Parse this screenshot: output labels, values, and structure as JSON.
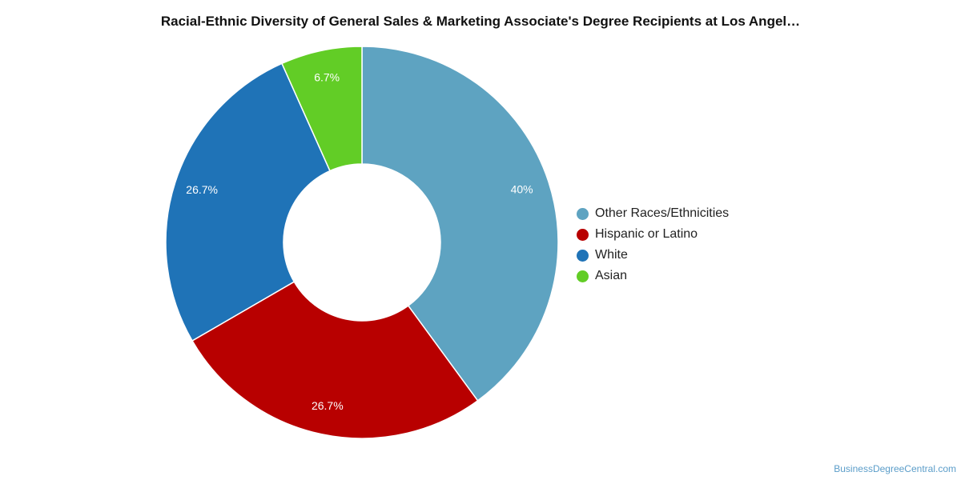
{
  "chart_data": {
    "type": "pie",
    "donut": true,
    "title": "Racial-Ethnic Diversity of General Sales & Marketing Associate's Degree Recipients at Los Angel…",
    "slices": [
      {
        "label": "Other Races/Ethnicities",
        "value": 40,
        "display": "40%",
        "color": "#5ea3c1"
      },
      {
        "label": "Hispanic or Latino",
        "value": 26.7,
        "display": "26.7%",
        "color": "#b80000"
      },
      {
        "label": "White",
        "value": 26.7,
        "display": "26.7%",
        "color": "#1f73b7"
      },
      {
        "label": "Asian",
        "value": 6.7,
        "display": "6.7%",
        "color": "#62cd26"
      }
    ],
    "legend_position": "right"
  },
  "footer": {
    "credit": "BusinessDegreeCentral.com"
  }
}
